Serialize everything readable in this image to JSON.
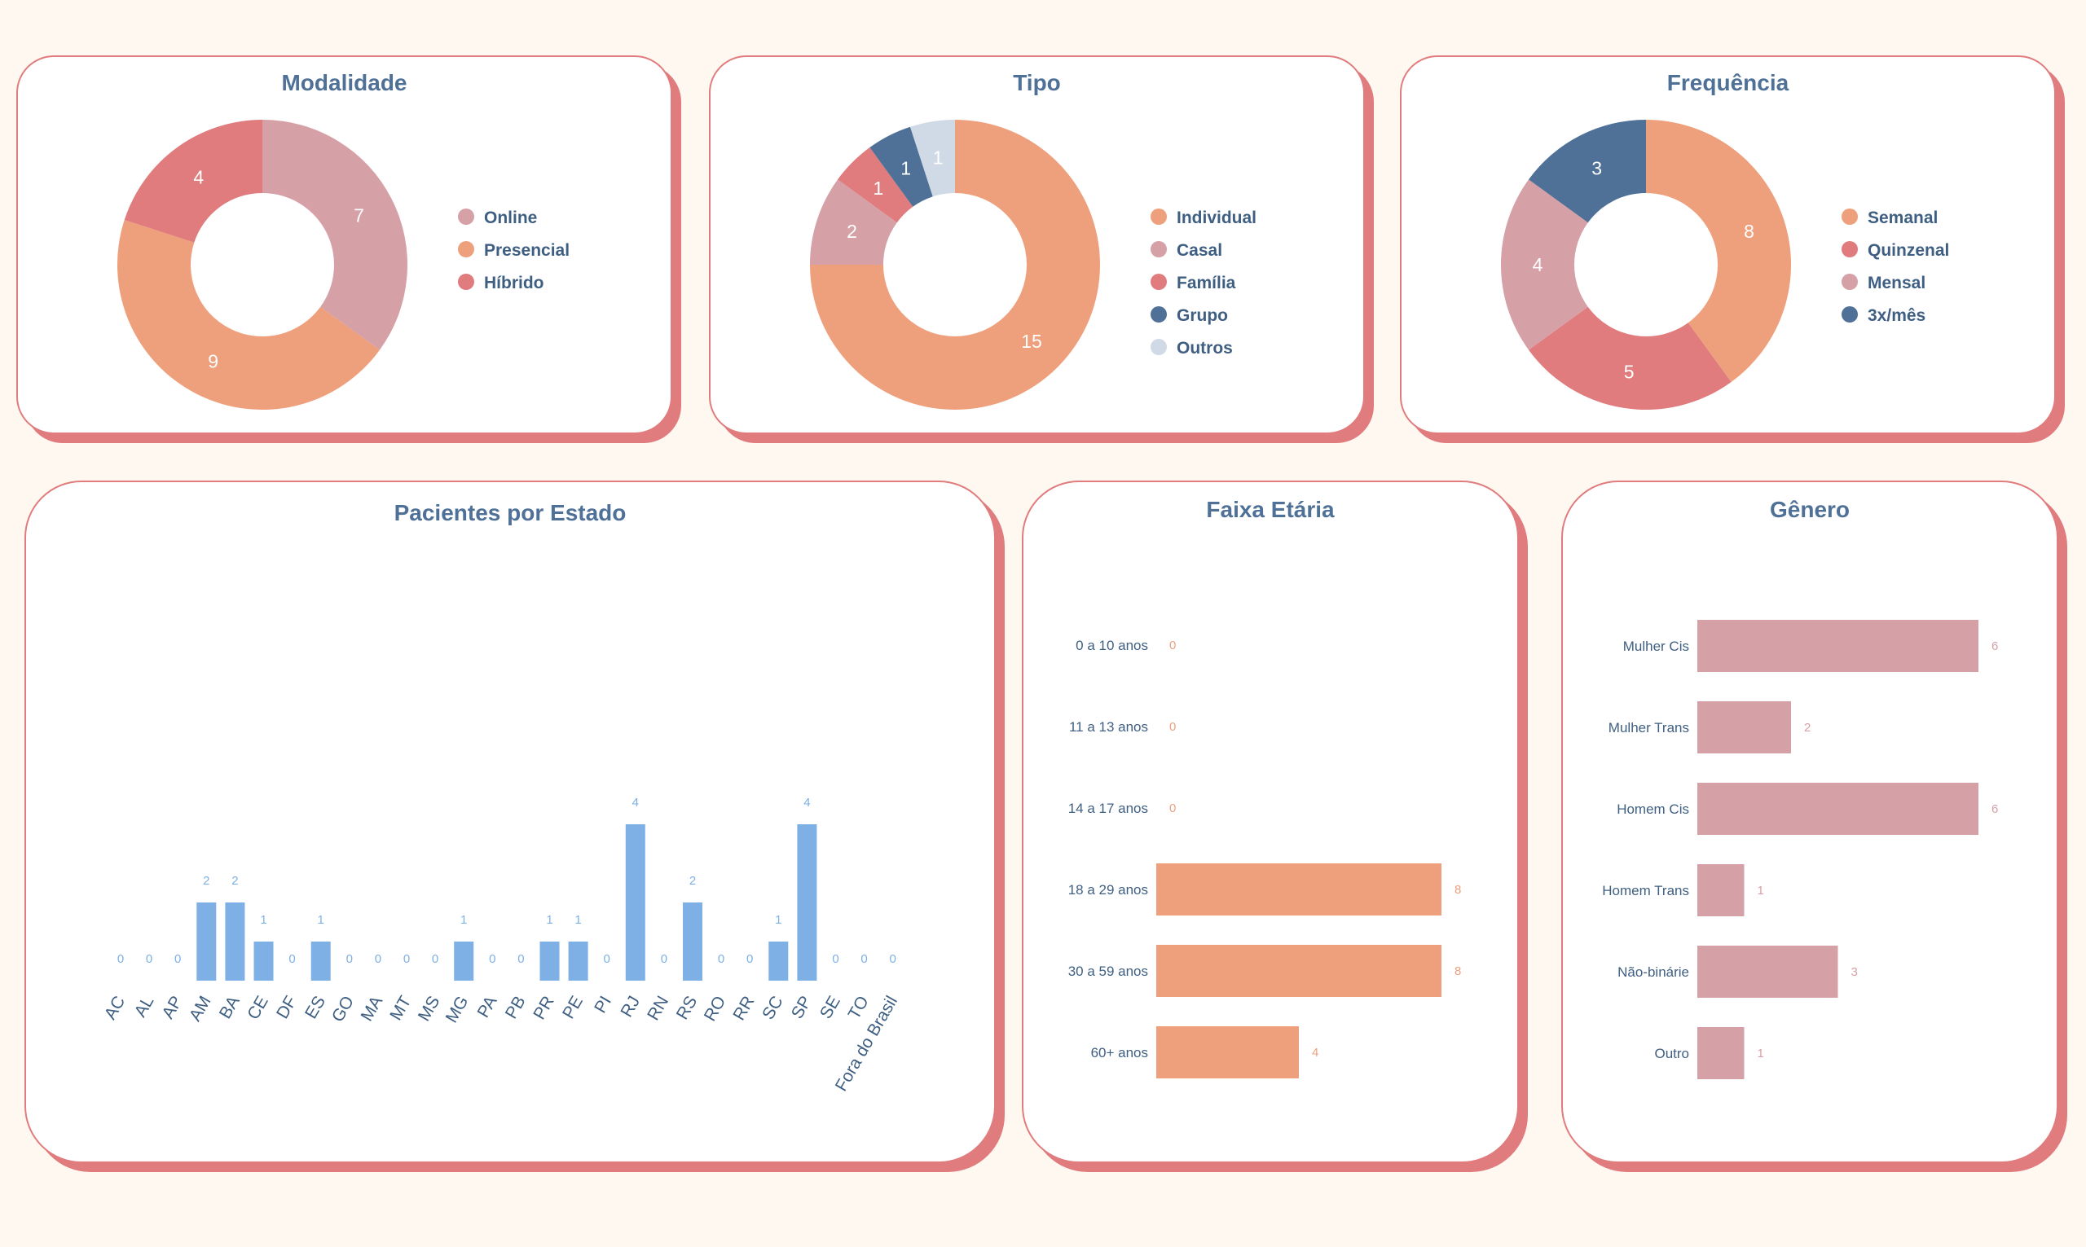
{
  "colors": {
    "title": "#4f7197",
    "card_border": "#e07c7e",
    "bar_blue": "#7eb0e5",
    "bar_orange": "#eea07d",
    "bar_pink": "#d6a0a7"
  },
  "modalidade": {
    "title": "Modalidade",
    "chart_data": {
      "type": "pie",
      "title": "Modalidade",
      "labels": [
        "Online",
        "Presencial",
        "Híbrido"
      ],
      "values": [
        7,
        9,
        4
      ],
      "colors": [
        "#d6a0a7",
        "#eea07d",
        "#e07c7e"
      ]
    }
  },
  "tipo": {
    "title": "Tipo",
    "chart_data": {
      "type": "pie",
      "title": "Tipo",
      "labels": [
        "Individual",
        "Casal",
        "Família",
        "Grupo",
        "Outros"
      ],
      "values": [
        15,
        2,
        1,
        1,
        1
      ],
      "colors": [
        "#eea07d",
        "#d6a0a7",
        "#e07c7e",
        "#4f7197",
        "#cfdae6"
      ]
    }
  },
  "frequencia": {
    "title": "Frequência",
    "chart_data": {
      "type": "pie",
      "title": "Frequência",
      "labels": [
        "Semanal",
        "Quinzenal",
        "Mensal",
        "3x/mês"
      ],
      "values": [
        8,
        5,
        4,
        3
      ],
      "colors": [
        "#eea07d",
        "#e07c7e",
        "#d6a0a7",
        "#4f7197"
      ]
    }
  },
  "estados": {
    "title": "Pacientes por Estado",
    "chart_data": {
      "type": "bar",
      "title": "Pacientes por Estado",
      "categories": [
        "AC",
        "AL",
        "AP",
        "AM",
        "BA",
        "CE",
        "DF",
        "ES",
        "GO",
        "MA",
        "MT",
        "MS",
        "MG",
        "PA",
        "PB",
        "PR",
        "PE",
        "PI",
        "RJ",
        "RN",
        "RS",
        "RO",
        "RR",
        "SC",
        "SP",
        "SE",
        "TO",
        "Fora do Brasil"
      ],
      "values": [
        0,
        0,
        0,
        2,
        2,
        1,
        0,
        1,
        0,
        0,
        0,
        0,
        1,
        0,
        0,
        1,
        1,
        0,
        4,
        0,
        2,
        0,
        0,
        1,
        4,
        0,
        0,
        0
      ],
      "ylim": [
        0,
        4
      ]
    }
  },
  "faixa": {
    "title": "Faixa Etária",
    "chart_data": {
      "type": "bar",
      "orientation": "horizontal",
      "title": "Faixa Etária",
      "categories": [
        "0 a 10 anos",
        "11 a 13 anos",
        "14 a 17 anos",
        "18 a 29 anos",
        "30 a 59 anos",
        "60+ anos"
      ],
      "values": [
        0,
        0,
        0,
        8,
        8,
        4
      ],
      "xlim": [
        0,
        8
      ]
    }
  },
  "genero": {
    "title": "Gênero",
    "chart_data": {
      "type": "bar",
      "orientation": "horizontal",
      "title": "Gênero",
      "categories": [
        "Mulher Cis",
        "Mulher Trans",
        "Homem Cis",
        "Homem Trans",
        "Não-binárie",
        "Outro"
      ],
      "values": [
        6,
        2,
        6,
        1,
        3,
        1
      ],
      "xlim": [
        0,
        6
      ]
    }
  }
}
